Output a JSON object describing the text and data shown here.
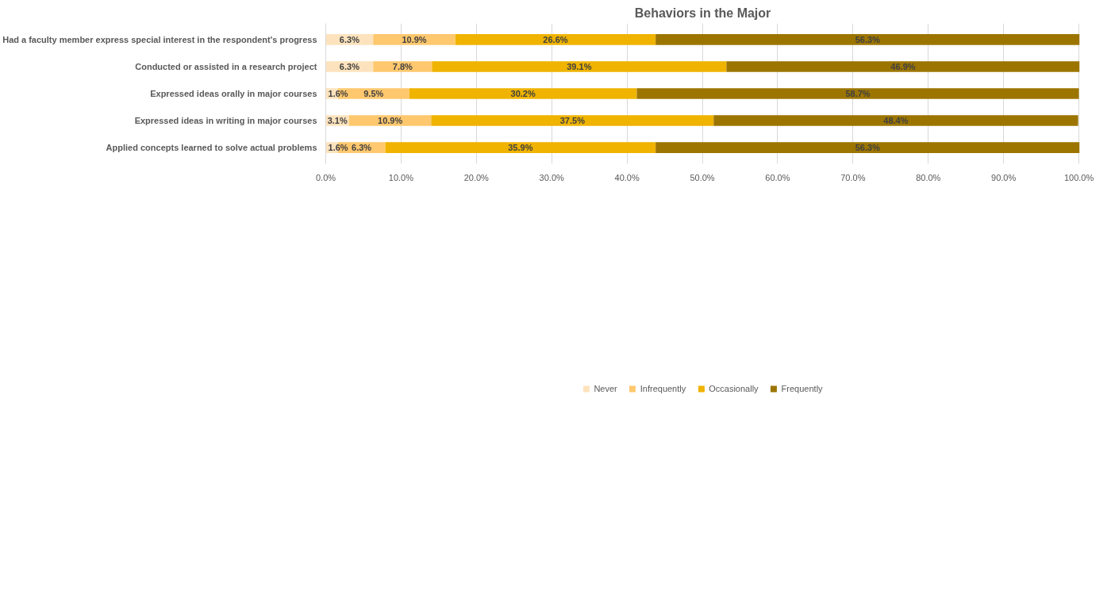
{
  "chart_data": {
    "type": "bar",
    "orientation": "horizontal",
    "stacked": true,
    "title": "Behaviors in the Major",
    "categories": [
      "Had a faculty member express special interest in the respondent's progress",
      "Conducted or assisted in a research project",
      "Expressed ideas orally in major courses",
      "Expressed ideas in writing in major courses",
      "Applied concepts learned to solve actual problems"
    ],
    "series": [
      {
        "name": "Never",
        "color": "#fde3bd",
        "values": [
          6.3,
          6.3,
          1.6,
          3.1,
          1.6
        ],
        "value_labels": [
          "6.3%",
          "6.3%",
          "1.6%",
          "3.1%",
          "1.6%"
        ]
      },
      {
        "name": "Infrequently",
        "color": "#ffc86e",
        "values": [
          10.9,
          7.8,
          9.5,
          10.9,
          6.3
        ],
        "value_labels": [
          "10.9%",
          "7.8%",
          "9.5%",
          "10.9%",
          "6.3%"
        ]
      },
      {
        "name": "Occasionally",
        "color": "#efb300",
        "values": [
          26.6,
          39.1,
          30.2,
          37.5,
          35.9
        ],
        "value_labels": [
          "26.6%",
          "39.1%",
          "30.2%",
          "37.5%",
          "35.9%"
        ]
      },
      {
        "name": "Frequently",
        "color": "#9c7500",
        "values": [
          56.3,
          46.9,
          58.7,
          48.4,
          56.3
        ],
        "value_labels": [
          "56.3%",
          "46.9%",
          "58.7%",
          "48.4%",
          "56.3%"
        ]
      }
    ],
    "xlim": [
      0,
      100.1
    ],
    "xticks": [
      {
        "value": 0,
        "label": "0.0%"
      },
      {
        "value": 10,
        "label": "10.0%"
      },
      {
        "value": 20,
        "label": "20.0%"
      },
      {
        "value": 30,
        "label": "30.0%"
      },
      {
        "value": 40,
        "label": "40.0%"
      },
      {
        "value": 50,
        "label": "50.0%"
      },
      {
        "value": 60,
        "label": "60.0%"
      },
      {
        "value": 70,
        "label": "70.0%"
      },
      {
        "value": 80,
        "label": "80.0%"
      },
      {
        "value": 90,
        "label": "90.0%"
      },
      {
        "value": 100,
        "label": "100.0%"
      }
    ],
    "grid": "x",
    "legend": "bottom"
  }
}
